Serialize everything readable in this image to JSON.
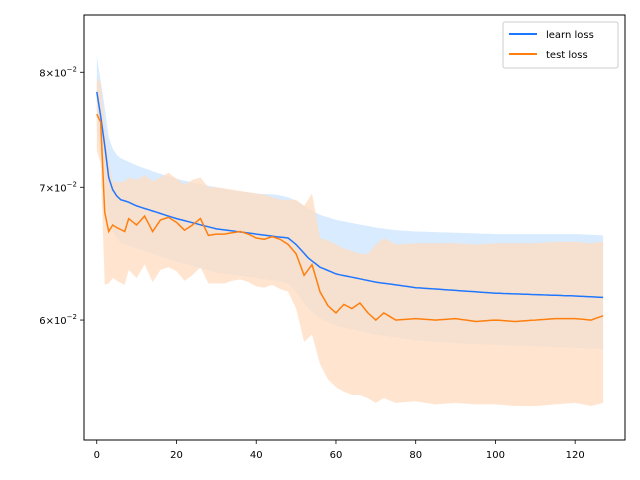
{
  "chart_data": {
    "type": "line",
    "title": "",
    "xlabel": "",
    "ylabel": "",
    "y_scale": "log",
    "xlim": [
      -3.2,
      132.5
    ],
    "ylim": [
      0.0522,
      0.0855
    ],
    "x_ticks": [
      0,
      20,
      40,
      60,
      80,
      100,
      120
    ],
    "x_tick_labels": [
      "0",
      "20",
      "40",
      "60",
      "80",
      "100",
      "120"
    ],
    "y_ticks": [
      0.06,
      0.07,
      0.08
    ],
    "y_tick_labels": [
      {
        "mantissa": "6",
        "times": "×",
        "base": "10",
        "exponent": "−2"
      },
      {
        "mantissa": "7",
        "times": "×",
        "base": "10",
        "exponent": "−2"
      },
      {
        "mantissa": "8",
        "times": "×",
        "base": "10",
        "exponent": "−2"
      }
    ],
    "grid": false,
    "legend_position": "top-right",
    "series": [
      {
        "name": "learn loss",
        "color": "#1f77ff",
        "band_color": "#cce4ff",
        "knots": [
          [
            0,
            0.0782,
            0.0815,
            0.0748
          ],
          [
            1,
            0.076,
            0.0792,
            0.0728
          ],
          [
            2,
            0.0735,
            0.0768,
            0.0703
          ],
          [
            3,
            0.0708,
            0.0742,
            0.0676
          ],
          [
            4,
            0.0698,
            0.0732,
            0.0665
          ],
          [
            5,
            0.0693,
            0.0727,
            0.066
          ],
          [
            6,
            0.069,
            0.0724,
            0.0656
          ],
          [
            8,
            0.0688,
            0.0721,
            0.0654
          ],
          [
            10,
            0.0685,
            0.0718,
            0.0652
          ],
          [
            15,
            0.068,
            0.0712,
            0.0647
          ],
          [
            20,
            0.0675,
            0.0707,
            0.0642
          ],
          [
            25,
            0.0671,
            0.0703,
            0.0638
          ],
          [
            30,
            0.0667,
            0.07,
            0.0634
          ],
          [
            35,
            0.0665,
            0.0697,
            0.0632
          ],
          [
            40,
            0.0663,
            0.0695,
            0.063
          ],
          [
            45,
            0.0661,
            0.0694,
            0.0628
          ],
          [
            48,
            0.066,
            0.0692,
            0.0626
          ],
          [
            50,
            0.0655,
            0.0689,
            0.062
          ],
          [
            53,
            0.0645,
            0.0683,
            0.0608
          ],
          [
            56,
            0.0638,
            0.0678,
            0.0601
          ],
          [
            60,
            0.0633,
            0.0674,
            0.0596
          ],
          [
            65,
            0.063,
            0.0671,
            0.0593
          ],
          [
            70,
            0.0627,
            0.0668,
            0.059
          ],
          [
            75,
            0.0625,
            0.0666,
            0.0588
          ],
          [
            80,
            0.0623,
            0.0665,
            0.0586
          ],
          [
            90,
            0.0621,
            0.0664,
            0.0584
          ],
          [
            100,
            0.0619,
            0.0663,
            0.0583
          ],
          [
            110,
            0.0618,
            0.0663,
            0.0582
          ],
          [
            120,
            0.0617,
            0.0663,
            0.0581
          ],
          [
            127,
            0.0616,
            0.0662,
            0.058
          ]
        ]
      },
      {
        "name": "test loss",
        "color": "#ff7f0e",
        "band_color": "#ffdcc0",
        "knots": [
          [
            0,
            0.0762,
            0.0795,
            0.073
          ],
          [
            1,
            0.0755,
            0.079,
            0.072
          ],
          [
            2,
            0.068,
            0.075,
            0.0625
          ],
          [
            3,
            0.0665,
            0.0722,
            0.0626
          ],
          [
            4,
            0.067,
            0.0705,
            0.063
          ],
          [
            5,
            0.0668,
            0.0704,
            0.0628
          ],
          [
            7,
            0.0665,
            0.0705,
            0.0625
          ],
          [
            8,
            0.0675,
            0.0708,
            0.0636
          ],
          [
            10,
            0.067,
            0.0706,
            0.063
          ],
          [
            12,
            0.0677,
            0.071,
            0.064
          ],
          [
            14,
            0.0665,
            0.0705,
            0.0627
          ],
          [
            16,
            0.0674,
            0.0708,
            0.0636
          ],
          [
            18,
            0.0676,
            0.0712,
            0.0638
          ],
          [
            20,
            0.0672,
            0.0707,
            0.0635
          ],
          [
            22,
            0.0666,
            0.0702,
            0.0628
          ],
          [
            24,
            0.067,
            0.0706,
            0.0632
          ],
          [
            26,
            0.0675,
            0.0708,
            0.0638
          ],
          [
            28,
            0.0662,
            0.07,
            0.0626
          ],
          [
            30,
            0.0663,
            0.07,
            0.0626
          ],
          [
            32,
            0.0663,
            0.0699,
            0.0626
          ],
          [
            34,
            0.0664,
            0.0698,
            0.0628
          ],
          [
            36,
            0.0665,
            0.0697,
            0.0629
          ],
          [
            38,
            0.0663,
            0.0696,
            0.0627
          ],
          [
            40,
            0.066,
            0.0695,
            0.0624
          ],
          [
            42,
            0.0659,
            0.0694,
            0.0623
          ],
          [
            44,
            0.0661,
            0.0692,
            0.0625
          ],
          [
            46,
            0.0659,
            0.069,
            0.0622
          ],
          [
            48,
            0.0655,
            0.069,
            0.062
          ],
          [
            50,
            0.0648,
            0.069,
            0.0608
          ],
          [
            52,
            0.0632,
            0.0685,
            0.0585
          ],
          [
            54,
            0.064,
            0.0695,
            0.059
          ],
          [
            56,
            0.062,
            0.066,
            0.057
          ],
          [
            58,
            0.061,
            0.0658,
            0.056
          ],
          [
            60,
            0.0605,
            0.0655,
            0.0555
          ],
          [
            62,
            0.0611,
            0.0652,
            0.0552
          ],
          [
            64,
            0.0608,
            0.065,
            0.055
          ],
          [
            66,
            0.0612,
            0.0648,
            0.055
          ],
          [
            68,
            0.0605,
            0.0648,
            0.0548
          ],
          [
            70,
            0.06,
            0.0655,
            0.0545
          ],
          [
            72,
            0.0605,
            0.066,
            0.0548
          ],
          [
            75,
            0.06,
            0.0655,
            0.0545
          ],
          [
            80,
            0.0601,
            0.0656,
            0.0546
          ],
          [
            85,
            0.06,
            0.0656,
            0.0544
          ],
          [
            90,
            0.0601,
            0.0656,
            0.0545
          ],
          [
            95,
            0.0599,
            0.0655,
            0.0544
          ],
          [
            100,
            0.06,
            0.0656,
            0.0544
          ],
          [
            105,
            0.0599,
            0.0656,
            0.0543
          ],
          [
            110,
            0.06,
            0.0656,
            0.0543
          ],
          [
            115,
            0.0601,
            0.0657,
            0.0544
          ],
          [
            120,
            0.0601,
            0.0657,
            0.0545
          ],
          [
            124,
            0.06,
            0.0656,
            0.0543
          ],
          [
            127,
            0.0603,
            0.0657,
            0.0545
          ]
        ]
      }
    ]
  }
}
